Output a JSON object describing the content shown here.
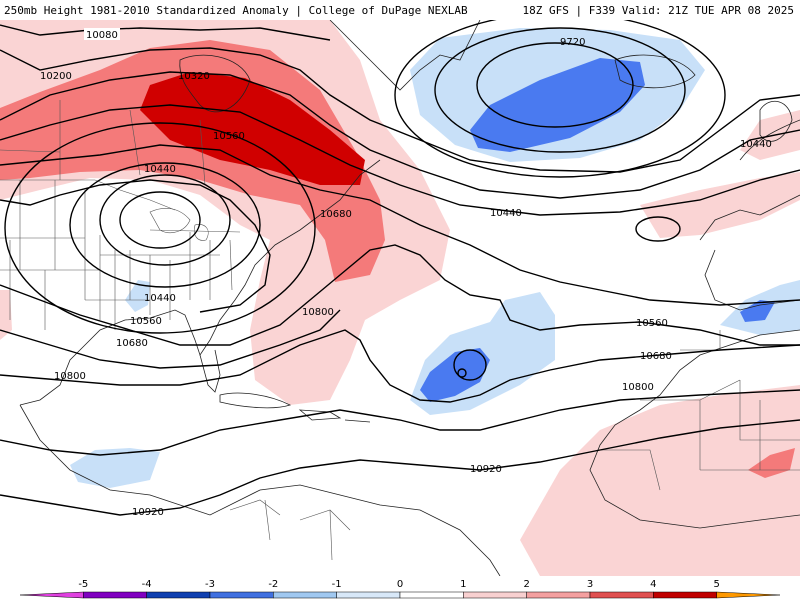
{
  "header": {
    "left_title": "250mb Height 1981-2010 Standardized Anomaly | College of DuPage NEXLAB",
    "right_title": "18Z GFS | F339 Valid: 21Z TUE APR 08 2025"
  },
  "contour_labels": {
    "c1": "10080",
    "c2": "10200",
    "c3": "10320",
    "c4": "10560",
    "c5": "10440",
    "c6": "10680",
    "c7": "10440",
    "c8": "10560",
    "c9": "10680",
    "c10": "10800",
    "c11": "10800",
    "c12": "9720",
    "c13": "10440",
    "c14": "10440",
    "c15": "10560",
    "c16": "10680",
    "c17": "10800",
    "c18": "10920",
    "c19": "10920"
  },
  "colorbar": {
    "ticks": [
      "-5",
      "-4",
      "-3",
      "-2",
      "-1",
      "0",
      "1",
      "2",
      "3",
      "4",
      "5"
    ],
    "colors": [
      "#e040e0",
      "#8000c0",
      "#1040b0",
      "#4070e0",
      "#a0c8f0",
      "#d8e8f8",
      "#ffffff",
      "#f8d0d0",
      "#f4a0a0",
      "#e05050",
      "#c00000",
      "#ff9900"
    ]
  },
  "anomaly_colors": {
    "neg_strong": "#4a7af0",
    "neg_weak": "#c8e0f8",
    "pos_weak": "#fad4d4",
    "pos_mid": "#f47a7a",
    "pos_strong": "#d00000"
  }
}
